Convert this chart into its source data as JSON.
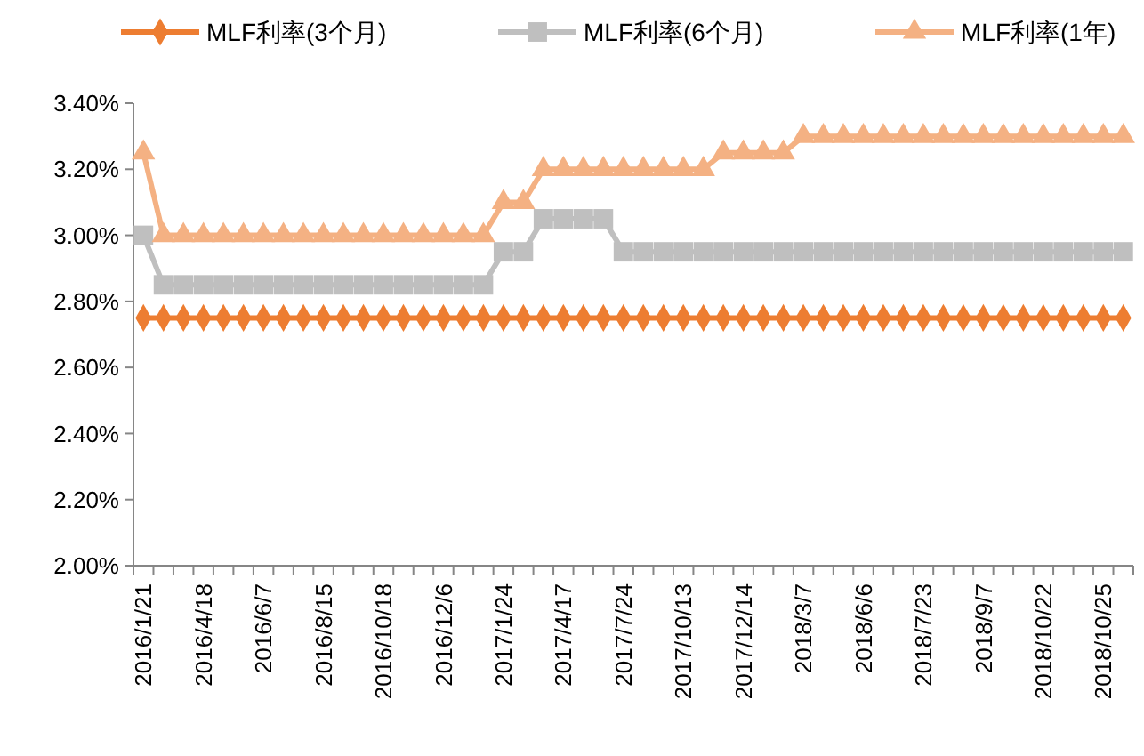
{
  "chart_data": {
    "type": "line",
    "categories": [
      "2016/1/21",
      null,
      null,
      "2016/4/18",
      null,
      null,
      "2016/6/7",
      null,
      null,
      "2016/8/15",
      null,
      null,
      "2016/10/18",
      null,
      null,
      "2016/12/6",
      null,
      null,
      "2017/1/24",
      null,
      null,
      "2017/4/17",
      null,
      null,
      "2017/7/24",
      null,
      null,
      "2017/10/13",
      null,
      null,
      "2017/12/14",
      null,
      null,
      "2018/3/7",
      null,
      null,
      "2018/6/6",
      null,
      null,
      "2018/7/23",
      null,
      null,
      "2018/9/7",
      null,
      null,
      "2018/10/22",
      null,
      null,
      "2018/10/25",
      null
    ],
    "series": [
      {
        "name": "MLF利率(3个月)",
        "color": "#ed7d31",
        "marker": "diamond",
        "values": [
          2.75,
          2.75,
          2.75,
          2.75,
          2.75,
          2.75,
          2.75,
          2.75,
          2.75,
          2.75,
          2.75,
          2.75,
          2.75,
          2.75,
          2.75,
          2.75,
          2.75,
          2.75,
          2.75,
          2.75,
          2.75,
          2.75,
          2.75,
          2.75,
          2.75,
          2.75,
          2.75,
          2.75,
          2.75,
          2.75,
          2.75,
          2.75,
          2.75,
          2.75,
          2.75,
          2.75,
          2.75,
          2.75,
          2.75,
          2.75,
          2.75,
          2.75,
          2.75,
          2.75,
          2.75,
          2.75,
          2.75,
          2.75,
          2.75,
          2.75
        ]
      },
      {
        "name": "MLF利率(6个月)",
        "color": "#bfbfbf",
        "marker": "square",
        "values": [
          3.0,
          2.85,
          2.85,
          2.85,
          2.85,
          2.85,
          2.85,
          2.85,
          2.85,
          2.85,
          2.85,
          2.85,
          2.85,
          2.85,
          2.85,
          2.85,
          2.85,
          2.85,
          2.95,
          2.95,
          3.05,
          3.05,
          3.05,
          3.05,
          2.95,
          2.95,
          2.95,
          2.95,
          2.95,
          2.95,
          2.95,
          2.95,
          2.95,
          2.95,
          2.95,
          2.95,
          2.95,
          2.95,
          2.95,
          2.95,
          2.95,
          2.95,
          2.95,
          2.95,
          2.95,
          2.95,
          2.95,
          2.95,
          2.95,
          2.95
        ]
      },
      {
        "name": "MLF利率(1年)",
        "color": "#f4b183",
        "marker": "triangle",
        "values": [
          3.25,
          3.0,
          3.0,
          3.0,
          3.0,
          3.0,
          3.0,
          3.0,
          3.0,
          3.0,
          3.0,
          3.0,
          3.0,
          3.0,
          3.0,
          3.0,
          3.0,
          3.0,
          3.1,
          3.1,
          3.2,
          3.2,
          3.2,
          3.2,
          3.2,
          3.2,
          3.2,
          3.2,
          3.2,
          3.25,
          3.25,
          3.25,
          3.25,
          3.3,
          3.3,
          3.3,
          3.3,
          3.3,
          3.3,
          3.3,
          3.3,
          3.3,
          3.3,
          3.3,
          3.3,
          3.3,
          3.3,
          3.3,
          3.3,
          3.3
        ]
      }
    ],
    "ylim": [
      2.0,
      3.4
    ],
    "yticks": [
      {
        "value": 2.0,
        "label": "2.00%"
      },
      {
        "value": 2.2,
        "label": "2.20%"
      },
      {
        "value": 2.4,
        "label": "2.40%"
      },
      {
        "value": 2.6,
        "label": "2.60%"
      },
      {
        "value": 2.8,
        "label": "2.80%"
      },
      {
        "value": 3.0,
        "label": "3.00%"
      },
      {
        "value": 3.2,
        "label": "3.20%"
      },
      {
        "value": 3.4,
        "label": "3.40%"
      }
    ],
    "grid": false,
    "legend": "top",
    "line_style": "solid"
  }
}
